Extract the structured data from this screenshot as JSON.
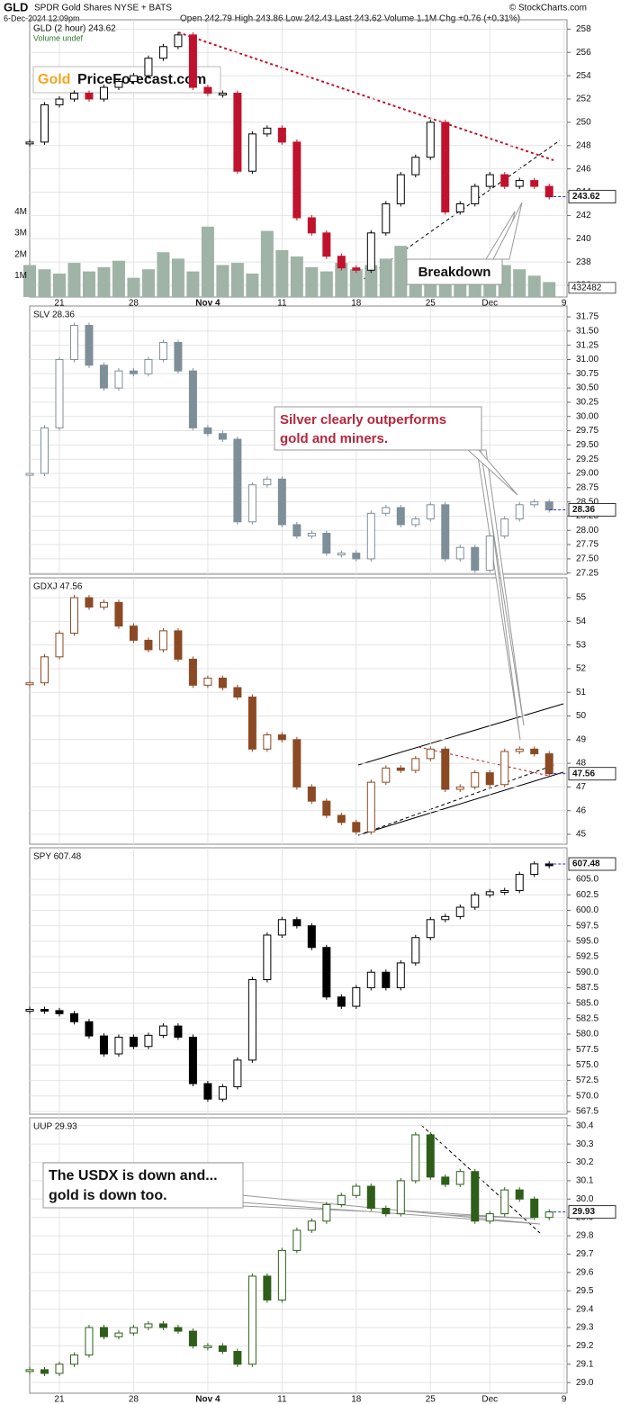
{
  "chart_data": [
    {
      "type": "candlestick",
      "title": "GLD",
      "subtitle": "SPDR Gold Shares NYSE + BATS",
      "date": "6-Dec-2024 12:09pm",
      "quote": "Open 242.79 High 243.86 Low 242.43 Last 243.62 Volume 1.1M Chg +0.76 (+0.31%)",
      "source": "© StockCharts.com",
      "logo": {
        "part1": "Gold",
        "part2": "PriceForecast.com"
      },
      "series_label": "GLD (2 hour) 243.62",
      "volume_label": "Volume undef",
      "annotations": [
        "Breakdown"
      ],
      "x": [
        -2,
        -1,
        0,
        1,
        2,
        3,
        4,
        5,
        6,
        7,
        8,
        9,
        10,
        11,
        12,
        13,
        14,
        15,
        16,
        17,
        18,
        19,
        20,
        21,
        22,
        23,
        24,
        25,
        26,
        27,
        28,
        29,
        30,
        31,
        32,
        33
      ],
      "xlim": [
        -2,
        34.2
      ],
      "xticks": [
        {
          "value": 0,
          "label": "21"
        },
        {
          "value": 5,
          "label": "28"
        },
        {
          "value": 10,
          "label": "Nov 4"
        },
        {
          "value": 15,
          "label": "11"
        },
        {
          "value": 20,
          "label": "18"
        },
        {
          "value": 25,
          "label": "25"
        },
        {
          "value": 29,
          "label": "Dec"
        },
        {
          "value": 34,
          "label": "9"
        }
      ],
      "values": [
        248.3,
        251.5,
        252,
        252.5,
        252,
        253,
        253.5,
        254,
        255.5,
        256.5,
        257.5,
        253,
        252.5,
        252.5,
        245.8,
        249,
        249.5,
        248.3,
        241.8,
        240.5,
        238.5,
        237.5,
        237.3,
        240.5,
        243,
        245.5,
        247,
        250,
        242.3,
        243,
        244.5,
        245.5,
        244.5,
        245,
        244.5,
        243.6
      ],
      "up_color": "#000000",
      "down_color": "#c0122c",
      "ylim": [
        235,
        258.8
      ],
      "yticks": [
        236,
        238,
        240,
        242,
        244,
        246,
        248,
        250,
        252,
        254,
        256,
        258
      ],
      "last": 243.62,
      "volume": [
        1500000,
        1300000,
        1100000,
        1600000,
        1200000,
        1400000,
        1700000,
        900000,
        1300000,
        2100000,
        1800000,
        1200000,
        3300000,
        1500000,
        1600000,
        1100000,
        3100000,
        2200000,
        1900000,
        1400000,
        1200000,
        1600000,
        1300000,
        1500000,
        1800000,
        2400000,
        1700000,
        1200000,
        1000000,
        1600000,
        1100000,
        900000,
        1500000,
        1300000,
        1000000,
        700000
      ],
      "volume_color": "#9fb3a6",
      "volume_ylim": [
        0,
        13000000
      ],
      "volume_ticks": [
        {
          "value": 1000000,
          "label": "1M"
        },
        {
          "value": 2000000,
          "label": "2M"
        },
        {
          "value": 3000000,
          "label": "3M"
        },
        {
          "value": 4000000,
          "label": "4M"
        }
      ],
      "volume_last": 432482,
      "grid": true
    },
    {
      "type": "candlestick",
      "series_label": "SLV 28.36",
      "annotations": [
        "Silver clearly outperforms",
        "gold and miners."
      ],
      "x": [
        -2,
        -1,
        0,
        1,
        2,
        3,
        4,
        5,
        6,
        7,
        8,
        9,
        10,
        11,
        12,
        13,
        14,
        15,
        16,
        17,
        18,
        19,
        20,
        21,
        22,
        23,
        24,
        25,
        26,
        27,
        28,
        29,
        30,
        31,
        32,
        33
      ],
      "xlim": [
        -2,
        34.2
      ],
      "xticks": [
        0,
        5,
        10,
        15,
        20,
        25,
        29,
        34
      ],
      "values": [
        29,
        29.8,
        31,
        31.6,
        30.9,
        30.5,
        30.8,
        30.75,
        31,
        31.3,
        30.8,
        29.8,
        29.7,
        29.6,
        28.15,
        28.8,
        28.9,
        28.1,
        27.9,
        27.95,
        27.6,
        27.6,
        27.5,
        28.3,
        28.4,
        28.1,
        28.2,
        28.45,
        27.5,
        27.7,
        27.3,
        27.9,
        28.2,
        28.45,
        28.5,
        28.36
      ],
      "color": "#7f8f99",
      "ylim": [
        27.23,
        31.94
      ],
      "yticks": [
        27.25,
        {
          "value": 27.5,
          "label": "27.50"
        },
        27.75,
        {
          "value": 28,
          "label": "28.00"
        },
        28.25,
        {
          "value": 28.5,
          "label": "28.50"
        },
        28.75,
        {
          "value": 29,
          "label": "29.00"
        },
        29.25,
        {
          "value": 29.5,
          "label": "29.50"
        },
        29.75,
        {
          "value": 30,
          "label": "30.00"
        },
        30.25,
        {
          "value": 30.5,
          "label": "30.50"
        },
        30.75,
        {
          "value": 31,
          "label": "31.00"
        },
        31.25,
        {
          "value": 31.5,
          "label": "31.50"
        },
        31.75
      ],
      "last": 28.36,
      "grid": true
    },
    {
      "type": "candlestick",
      "series_label": "GDXJ 47.56",
      "x": [
        -2,
        -1,
        0,
        1,
        2,
        3,
        4,
        5,
        6,
        7,
        8,
        9,
        10,
        11,
        12,
        13,
        14,
        15,
        16,
        17,
        18,
        19,
        20,
        21,
        22,
        23,
        24,
        25,
        26,
        27,
        28,
        29,
        30,
        31,
        32,
        33
      ],
      "xlim": [
        -2,
        34.2
      ],
      "xticks": [
        0,
        5,
        10,
        15,
        20,
        25,
        29,
        34
      ],
      "values": [
        51.4,
        52.5,
        53.5,
        55,
        54.6,
        54.8,
        53.8,
        53.2,
        52.8,
        53.6,
        52.4,
        51.3,
        51.6,
        51.2,
        50.8,
        48.6,
        49.2,
        49,
        47,
        46.4,
        45.8,
        45.5,
        45.1,
        47.2,
        47.8,
        47.7,
        48.2,
        48.6,
        46.9,
        47,
        47.6,
        47.1,
        48.5,
        48.6,
        48.4,
        47.56
      ],
      "color": "#8b4a24",
      "ylim": [
        44.58,
        55.84
      ],
      "yticks": [
        45,
        46,
        47,
        48,
        49,
        50,
        51,
        52,
        53,
        54,
        55
      ],
      "last": 47.56,
      "grid": true
    },
    {
      "type": "candlestick",
      "series_label": "SPY 607.48",
      "x": [
        -2,
        -1,
        0,
        1,
        2,
        3,
        4,
        5,
        6,
        7,
        8,
        9,
        10,
        11,
        12,
        13,
        14,
        15,
        16,
        17,
        18,
        19,
        20,
        21,
        22,
        23,
        24,
        25,
        26,
        27,
        28,
        29,
        30,
        31,
        32,
        33
      ],
      "xlim": [
        -2,
        34.2
      ],
      "xticks": [
        0,
        5,
        10,
        15,
        20,
        25,
        29,
        34
      ],
      "values": [
        584,
        583.8,
        583.3,
        582,
        579.7,
        576.8,
        579.5,
        578,
        579.8,
        581.3,
        579.5,
        572,
        569.5,
        571.5,
        575.8,
        588.8,
        596,
        598.5,
        597.5,
        594,
        586,
        584.5,
        587.5,
        590,
        587.5,
        591.5,
        595.6,
        598.5,
        599,
        600.5,
        602.5,
        603,
        603.2,
        605.8,
        607.5,
        607.48
      ],
      "color": "#000000",
      "ylim": [
        567.06,
        610.1
      ],
      "yticks": [
        567.5,
        {
          "value": 570,
          "label": "570.0"
        },
        572.5,
        {
          "value": 575,
          "label": "575.0"
        },
        577.5,
        {
          "value": 580,
          "label": "580.0"
        },
        582.5,
        {
          "value": 585,
          "label": "585.0"
        },
        587.5,
        {
          "value": 590,
          "label": "590.0"
        },
        592.5,
        {
          "value": 595,
          "label": "595.0"
        },
        597.5,
        {
          "value": 600,
          "label": "600.0"
        },
        602.5,
        {
          "value": 605,
          "label": "605.0"
        }
      ],
      "last": 607.48,
      "grid": true
    },
    {
      "type": "candlestick",
      "series_label": "UUP 29.93",
      "annotations": [
        "The USDX is down and...",
        "gold is down too."
      ],
      "x": [
        -2,
        -1,
        0,
        1,
        2,
        3,
        4,
        5,
        6,
        7,
        8,
        9,
        10,
        11,
        12,
        13,
        14,
        15,
        16,
        17,
        18,
        19,
        20,
        21,
        22,
        23,
        24,
        25,
        26,
        27,
        28,
        29,
        30,
        31,
        32,
        33
      ],
      "xlim": [
        -2,
        34.2
      ],
      "xticks": [
        {
          "value": 0,
          "label": "21"
        },
        {
          "value": 5,
          "label": "28"
        },
        {
          "value": 10,
          "label": "Nov 4"
        },
        {
          "value": 15,
          "label": "11"
        },
        {
          "value": 20,
          "label": "18"
        },
        {
          "value": 25,
          "label": "25"
        },
        {
          "value": 29,
          "label": "Dec"
        },
        {
          "value": 34,
          "label": "9"
        }
      ],
      "values": [
        29.07,
        29.05,
        29.1,
        29.15,
        29.3,
        29.25,
        29.27,
        29.3,
        29.32,
        29.3,
        29.28,
        29.2,
        29.2,
        29.17,
        29.1,
        29.58,
        29.45,
        29.72,
        29.83,
        29.88,
        29.97,
        30.02,
        30.07,
        29.95,
        29.92,
        30.1,
        30.35,
        30.12,
        30.08,
        30.15,
        29.88,
        29.92,
        30.05,
        30,
        29.9,
        29.93
      ],
      "color": "#2e5e1a",
      "ylim": [
        28.942,
        30.443
      ],
      "yticks": [
        {
          "value": 29,
          "label": "29.0"
        },
        29.1,
        29.2,
        29.3,
        29.4,
        29.5,
        29.6,
        29.7,
        29.8,
        29.9,
        {
          "value": 30,
          "label": "30.0"
        },
        30.1,
        30.2,
        30.3,
        30.4
      ],
      "last": 29.93,
      "grid": true
    }
  ]
}
